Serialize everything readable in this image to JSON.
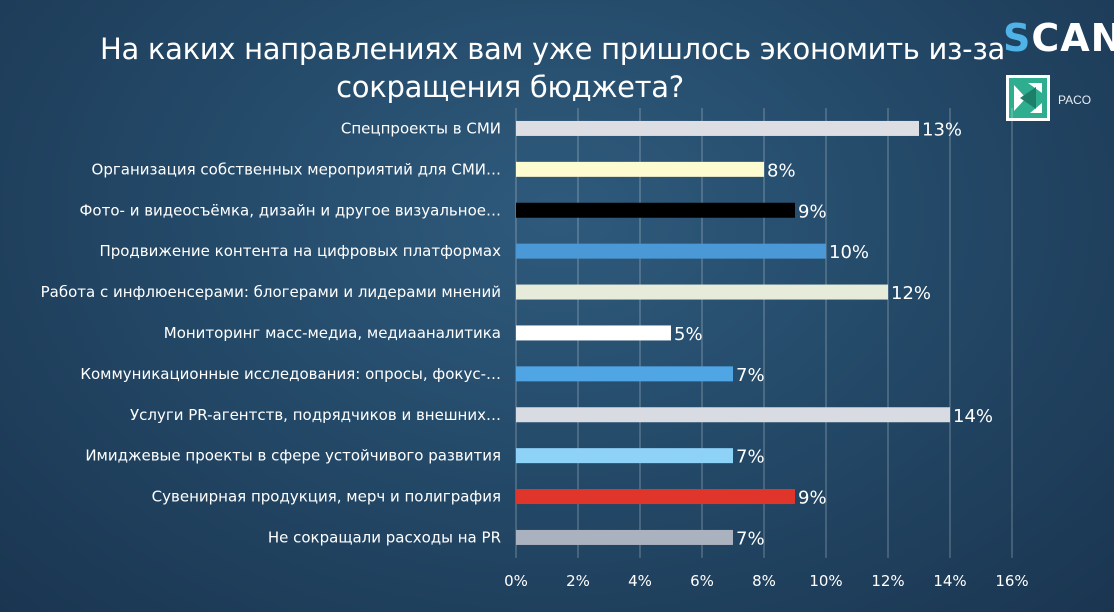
{
  "brand": {
    "scan_s": "S",
    "scan_rest": "CAN",
    "paco": "PACO"
  },
  "chart_data": {
    "type": "bar",
    "orientation": "horizontal",
    "title_lines": [
      "На каких направлениях вам уже пришлось экономить из-за",
      "сокращения бюджета?"
    ],
    "categories": [
      "Спецпроекты в СМИ",
      "Организация собственных мероприятий для СМИ…",
      "Фото- и видеосъёмка, дизайн и другое визуальное…",
      "Продвижение контента на цифровых платформах",
      "Работа с инфлюенсерами: блогерами и лидерами мнений",
      "Мониторинг масс-медиа, медиааналитика",
      "Коммуникационные исследования: опросы, фокус-…",
      "Услуги PR-агентств, подрядчиков и внешних…",
      "Имиджевые проекты в сфере устойчивого развития",
      "Сувенирная продукция, мерч и полиграфия",
      "Не сокращали расходы на PR"
    ],
    "values": [
      13,
      8,
      9,
      10,
      12,
      5,
      7,
      14,
      7,
      9,
      7
    ],
    "value_labels": [
      "13%",
      "8%",
      "9%",
      "10%",
      "12%",
      "5%",
      "7%",
      "14%",
      "7%",
      "9%",
      "7%"
    ],
    "colors": [
      "#dcdee3",
      "#fdfbd0",
      "#000000",
      "#4a98d6",
      "#e6ecd9",
      "#ffffff",
      "#50a5e4",
      "#d9dbe2",
      "#8fd2f8",
      "#e0352b",
      "#aab2bf"
    ],
    "xlim": [
      0,
      16
    ],
    "xticks": [
      "0%",
      "2%",
      "4%",
      "6%",
      "8%",
      "10%",
      "12%",
      "14%",
      "16%"
    ],
    "grid": true
  }
}
